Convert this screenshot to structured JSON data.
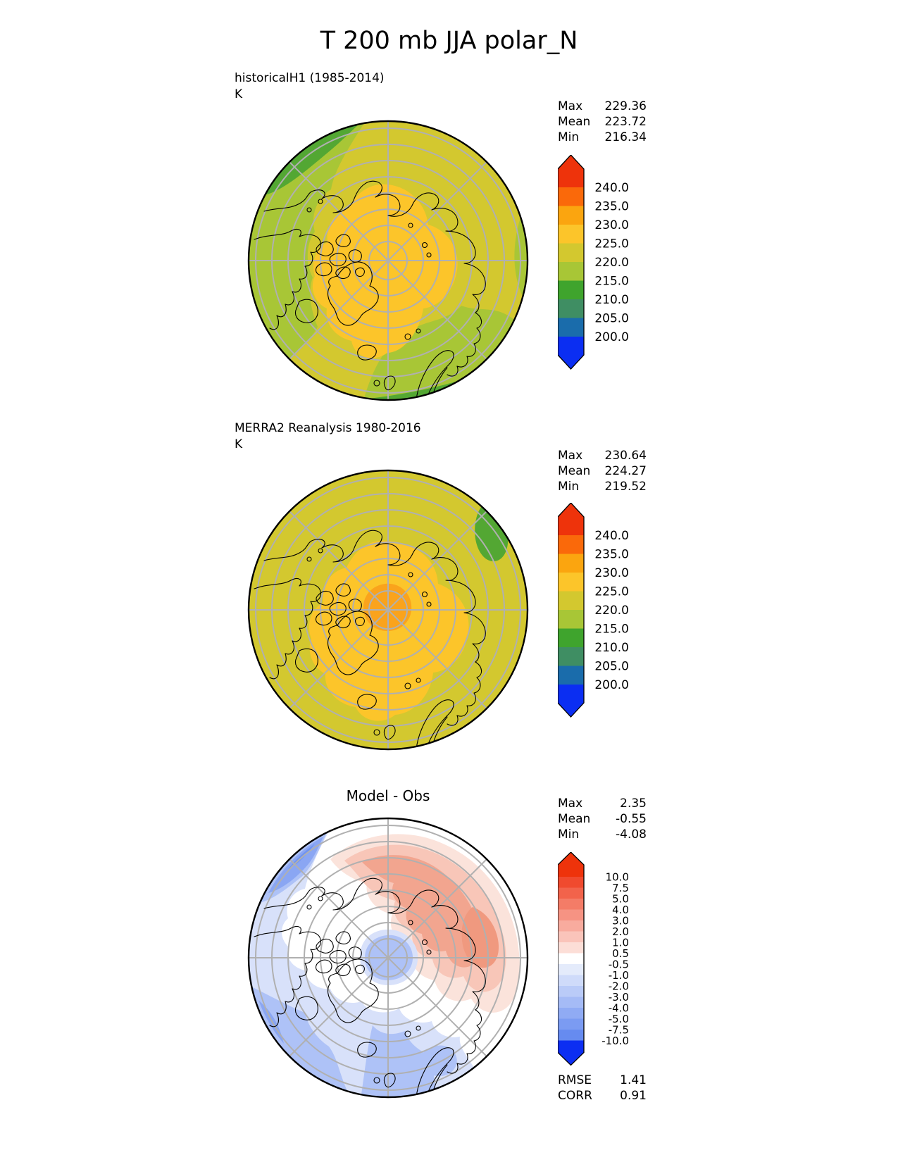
{
  "title": "T 200 mb JJA polar_N",
  "panels": [
    {
      "label": "historicalH1 (1985-2014)",
      "units": "K",
      "stats": [
        {
          "label": "Max",
          "value": "229.36"
        },
        {
          "label": "Mean",
          "value": "223.72"
        },
        {
          "label": "Min",
          "value": "216.34"
        }
      ],
      "colorbar": {
        "labels": [
          "240.0",
          "235.0",
          "230.0",
          "225.0",
          "220.0",
          "215.0",
          "210.0",
          "205.0",
          "200.0"
        ],
        "colors": [
          "#ee330b",
          "#fa690a",
          "#fba50f",
          "#fcc52a",
          "#d3c82f",
          "#a8c636",
          "#3fa42d",
          "#3f8e63",
          "#1a6cab",
          "#0b2ef2"
        ]
      }
    },
    {
      "label": "MERRA2 Reanalysis 1980-2016",
      "units": "K",
      "stats": [
        {
          "label": "Max",
          "value": "230.64"
        },
        {
          "label": "Mean",
          "value": "224.27"
        },
        {
          "label": "Min",
          "value": "219.52"
        }
      ],
      "colorbar": {
        "labels": [
          "240.0",
          "235.0",
          "230.0",
          "225.0",
          "220.0",
          "215.0",
          "210.0",
          "205.0",
          "200.0"
        ],
        "colors": [
          "#ee330b",
          "#fa690a",
          "#fba50f",
          "#fcc52a",
          "#d3c82f",
          "#a8c636",
          "#3fa42d",
          "#3f8e63",
          "#1a6cab",
          "#0b2ef2"
        ]
      }
    },
    {
      "label": "Model - Obs",
      "stats": [
        {
          "label": "Max",
          "value": "2.35"
        },
        {
          "label": "Mean",
          "value": "-0.55"
        },
        {
          "label": "Min",
          "value": "-4.08"
        }
      ],
      "metrics": [
        {
          "label": "RMSE",
          "value": "1.41"
        },
        {
          "label": "CORR",
          "value": "0.91"
        }
      ],
      "colorbar": {
        "labels": [
          "10.0",
          "7.5",
          "5.0",
          "4.0",
          "3.0",
          "2.0",
          "1.0",
          "0.5",
          "-0.5",
          "-1.0",
          "-2.0",
          "-3.0",
          "-4.0",
          "-5.0",
          "-7.5",
          "-10.0"
        ],
        "colors": [
          "#ee330b",
          "#f04a2e",
          "#f2634b",
          "#f47c67",
          "#f69383",
          "#f8ab9e",
          "#fac4ba",
          "#fcded7",
          "#ffffff",
          "#e4ebfb",
          "#cfdbfa",
          "#bacbf8",
          "#a5bbf6",
          "#90abf4",
          "#7b9bf2",
          "#668bf0",
          "#0c2ef2"
        ]
      }
    }
  ],
  "palette": {
    "olive": "#d3c82f",
    "gold": "#fcc52a",
    "orange": "#faa31c",
    "ygreen": "#a8c636",
    "green": "#53a733",
    "white": "#ffffff",
    "pink_pale": "#fbe3db",
    "pink_light": "#f8c6b8",
    "pink_mid": "#f2a58f",
    "pink_deep": "#f0997f",
    "blue_light": "#d8e1fa",
    "blue_mid": "#aec2f7",
    "blue_deep": "#8aa6f3",
    "blue_deepest": "#7093f0",
    "graticule": "#b0b0b0",
    "coast": "#000000",
    "outline": "#000000"
  },
  "chart_data": [
    {
      "type": "heatmap",
      "title": "historicalH1 (1985-2014)",
      "variable": "T 200 mb",
      "season": "JJA",
      "region": "polar_N",
      "units": "K",
      "projection": "north-polar-stereographic",
      "levels": [
        200.0,
        205.0,
        210.0,
        215.0,
        220.0,
        225.0,
        230.0,
        235.0,
        240.0
      ],
      "stats": {
        "max": 229.36,
        "mean": 223.72,
        "min": 216.34
      },
      "legend_position": "right"
    },
    {
      "type": "heatmap",
      "title": "MERRA2 Reanalysis 1980-2016",
      "variable": "T 200 mb",
      "season": "JJA",
      "region": "polar_N",
      "units": "K",
      "projection": "north-polar-stereographic",
      "levels": [
        200.0,
        205.0,
        210.0,
        215.0,
        220.0,
        225.0,
        230.0,
        235.0,
        240.0
      ],
      "stats": {
        "max": 230.64,
        "mean": 224.27,
        "min": 219.52
      },
      "legend_position": "right"
    },
    {
      "type": "heatmap",
      "title": "Model - Obs",
      "variable": "T 200 mb difference",
      "season": "JJA",
      "region": "polar_N",
      "units": "K",
      "projection": "north-polar-stereographic",
      "levels": [
        -10.0,
        -7.5,
        -5.0,
        -4.0,
        -3.0,
        -2.0,
        -1.0,
        -0.5,
        0.5,
        1.0,
        2.0,
        3.0,
        4.0,
        5.0,
        7.5,
        10.0
      ],
      "stats": {
        "max": 2.35,
        "mean": -0.55,
        "min": -4.08
      },
      "rmse": 1.41,
      "corr": 0.91,
      "legend_position": "right"
    }
  ]
}
